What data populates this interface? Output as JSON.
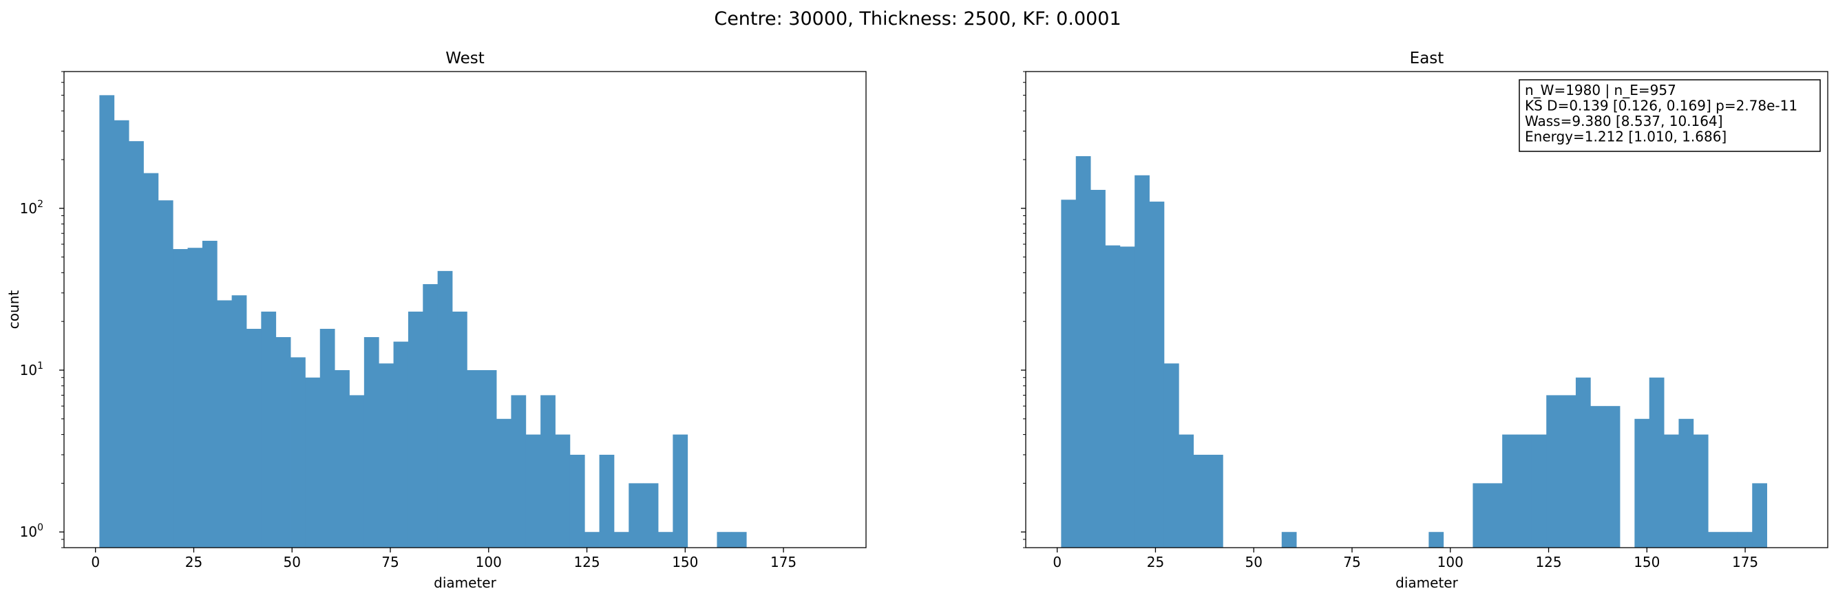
{
  "suptitle": "Centre: 30000, Thickness: 2500, KF: 0.0001",
  "bar_color": "#4C93C3",
  "chart_data": [
    {
      "type": "bar",
      "title": "West",
      "xlabel": "diameter",
      "ylabel": "count",
      "yscale": "log",
      "xlim": [
        -8,
        196
      ],
      "ylim": [
        0.8,
        700
      ],
      "xticks": [
        0,
        25,
        50,
        75,
        100,
        125,
        150,
        175
      ],
      "yticks": [
        {
          "value": 1,
          "base": "10",
          "exp": "0"
        },
        {
          "value": 10,
          "base": "10",
          "exp": "1"
        },
        {
          "value": 100,
          "base": "10",
          "exp": "2"
        }
      ],
      "bin_edges": [
        1.0,
        4.74,
        8.48,
        12.22,
        15.96,
        19.7,
        23.44,
        27.18,
        30.92,
        34.66,
        38.4,
        42.14,
        45.88,
        49.62,
        53.36,
        57.1,
        60.84,
        64.58,
        68.32,
        72.06,
        75.8,
        79.54,
        83.28,
        87.02,
        90.76,
        94.5,
        98.24,
        101.98,
        105.72,
        109.46,
        113.2,
        116.94,
        120.68,
        124.42,
        128.16,
        131.9,
        135.64,
        139.38,
        143.12,
        146.86,
        150.6,
        154.34,
        158.08,
        161.82,
        165.56,
        169.3,
        173.04,
        176.78,
        180.52,
        184.26,
        188.0
      ],
      "counts": [
        500,
        350,
        260,
        165,
        112,
        56,
        57,
        63,
        27,
        29,
        18,
        23,
        16,
        12,
        9,
        18,
        10,
        7,
        16,
        11,
        15,
        23,
        34,
        41,
        23,
        10,
        10,
        5,
        7,
        4,
        7,
        4,
        3,
        1,
        3,
        1,
        2,
        2,
        1,
        4,
        0,
        0,
        1,
        1,
        0,
        0,
        0,
        0,
        0,
        0
      ]
    },
    {
      "type": "bar",
      "title": "East",
      "xlabel": "diameter",
      "ylabel": "",
      "yscale": "log",
      "xlim": [
        -8,
        196
      ],
      "ylim": [
        0.8,
        700
      ],
      "xticks": [
        0,
        25,
        50,
        75,
        100,
        125,
        150,
        175
      ],
      "yticks": [
        {
          "value": 1,
          "base": "10",
          "exp": "0"
        },
        {
          "value": 10,
          "base": "10",
          "exp": "1"
        },
        {
          "value": 100,
          "base": "10",
          "exp": "2"
        }
      ],
      "bin_edges": [
        1.0,
        4.74,
        8.48,
        12.22,
        15.96,
        19.7,
        23.44,
        27.18,
        30.92,
        34.66,
        38.4,
        42.14,
        45.88,
        49.62,
        53.36,
        57.1,
        60.84,
        64.58,
        68.32,
        72.06,
        75.8,
        79.54,
        83.28,
        87.02,
        90.76,
        94.5,
        98.24,
        101.98,
        105.72,
        109.46,
        113.2,
        116.94,
        120.68,
        124.42,
        128.16,
        131.9,
        135.64,
        139.38,
        143.12,
        146.86,
        150.6,
        154.34,
        158.08,
        161.82,
        165.56,
        169.3,
        173.04,
        176.78,
        180.52,
        184.26,
        188.0
      ],
      "counts": [
        113,
        210,
        130,
        59,
        58,
        160,
        110,
        11,
        4,
        3,
        3,
        0,
        0,
        0,
        0,
        1,
        0,
        0,
        0,
        0,
        0,
        0,
        0,
        0,
        0,
        1,
        0,
        0,
        2,
        2,
        4,
        4,
        4,
        7,
        7,
        9,
        6,
        6,
        0,
        5,
        9,
        4,
        5,
        4,
        1,
        1,
        1,
        2,
        0,
        0
      ],
      "annotation": [
        "n_W=1980 | n_E=957",
        "KS D=0.139 [0.126, 0.169]  p=2.78e-11",
        "Wass=9.380 [8.537, 10.164]",
        "Energy=1.212 [1.010, 1.686]"
      ]
    }
  ]
}
